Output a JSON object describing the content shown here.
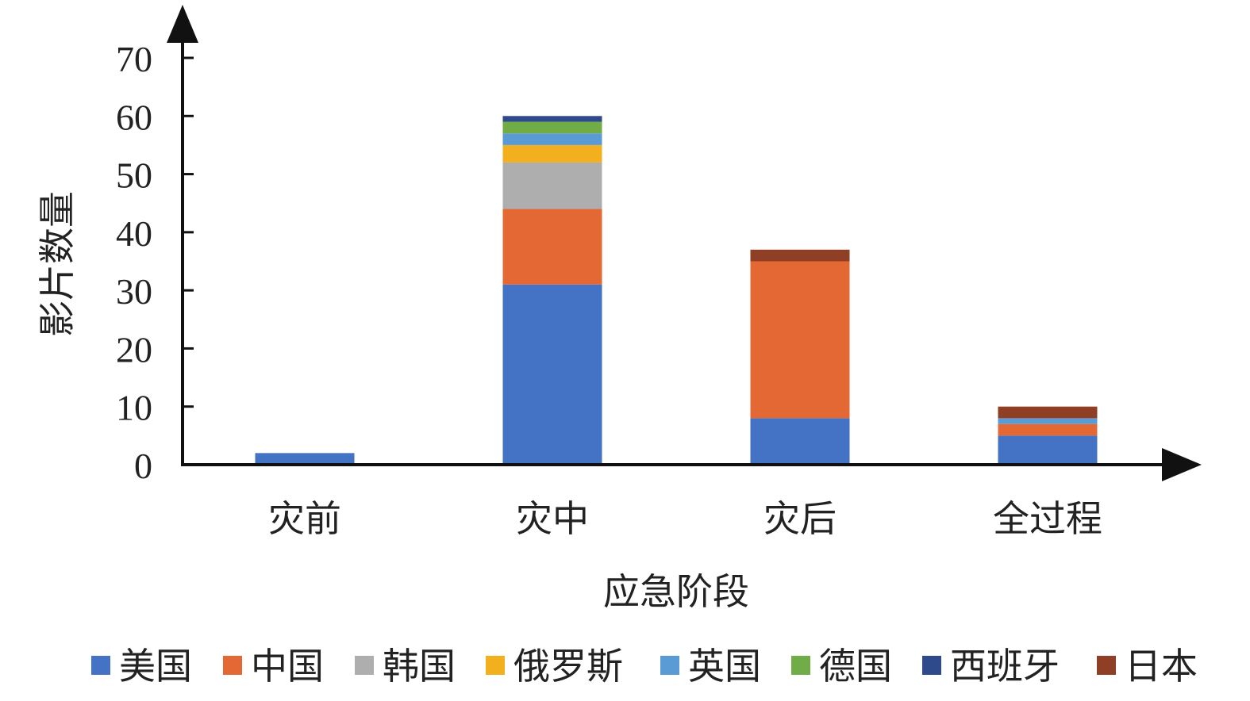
{
  "chart_data": {
    "type": "bar",
    "stacked": true,
    "xlabel": "应急阶段",
    "ylabel": "影片数量",
    "ylim": [
      0,
      70
    ],
    "yticks": [
      0,
      10,
      20,
      30,
      40,
      50,
      60,
      70
    ],
    "categories": [
      "灾前",
      "灾中",
      "灾后",
      "全过程"
    ],
    "legend_position": "bottom",
    "series": [
      {
        "name": "美国",
        "color": "#4472C4",
        "values": [
          2,
          31,
          8,
          5
        ]
      },
      {
        "name": "中国",
        "color": "#E46834",
        "values": [
          0,
          13,
          27,
          2
        ]
      },
      {
        "name": "韩国",
        "color": "#AEAEAE",
        "values": [
          0,
          8,
          0,
          0
        ]
      },
      {
        "name": "俄罗斯",
        "color": "#F2B01E",
        "values": [
          0,
          3,
          0,
          0
        ]
      },
      {
        "name": "英国",
        "color": "#5B9BD5",
        "values": [
          0,
          2,
          0,
          1
        ]
      },
      {
        "name": "德国",
        "color": "#70AD47",
        "values": [
          0,
          2,
          0,
          0
        ]
      },
      {
        "name": "西班牙",
        "color": "#2F4A8A",
        "values": [
          0,
          1,
          0,
          0
        ]
      },
      {
        "name": "日本",
        "color": "#8E3F26",
        "values": [
          0,
          0,
          2,
          2
        ]
      }
    ]
  }
}
